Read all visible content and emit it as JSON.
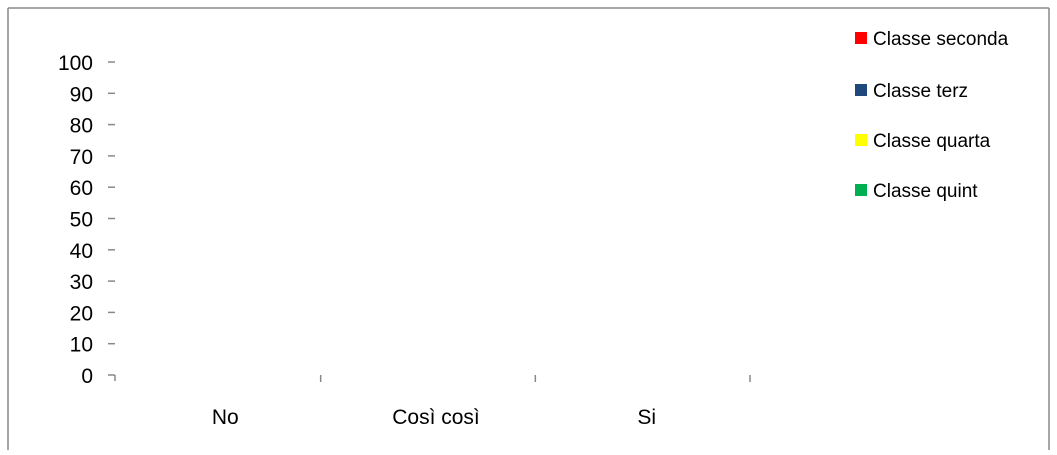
{
  "chart_data": {
    "type": "bar",
    "categories": [
      "No",
      "Così così",
      "Si"
    ],
    "y_ticks": [
      100,
      90,
      80,
      70,
      60,
      50,
      40,
      30,
      20,
      10,
      0
    ],
    "ylim": [
      0,
      100
    ],
    "series": [
      {
        "name": "Classe seconda",
        "color": "#ff0000",
        "values": [
          0,
          0,
          0
        ]
      },
      {
        "name": "Classe terz",
        "color": "#1f497d",
        "values": [
          0,
          0,
          0
        ]
      },
      {
        "name": "Classe quarta",
        "color": "#ffff00",
        "values": [
          0,
          0,
          0
        ]
      },
      {
        "name": "Classe quint",
        "color": "#00b050",
        "values": [
          0,
          0,
          0
        ]
      }
    ],
    "legend_position": "top-right",
    "grid": false
  }
}
